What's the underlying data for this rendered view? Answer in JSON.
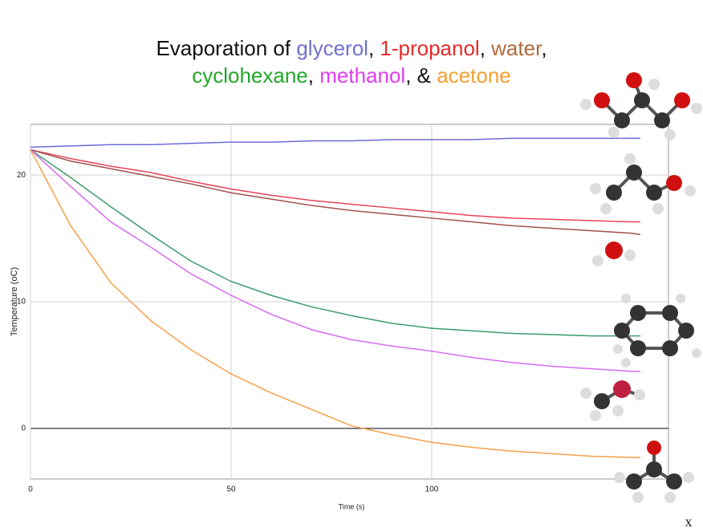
{
  "chart_data": {
    "type": "line",
    "title_lines": [
      [
        {
          "text": "Evaporation of ",
          "color": "#111111"
        },
        {
          "text": "glycerol",
          "color": "#7070d0"
        },
        {
          "text": ", ",
          "color": "#111111"
        },
        {
          "text": "1-propanol",
          "color": "#e62a2a"
        },
        {
          "text": ", ",
          "color": "#111111"
        },
        {
          "text": "water",
          "color": "#b06a3a"
        },
        {
          "text": ",",
          "color": "#111111"
        }
      ],
      [
        {
          "text": "cyclohexane",
          "color": "#22a82a"
        },
        {
          "text": ", ",
          "color": "#111111"
        },
        {
          "text": "methanol",
          "color": "#e03cf0"
        },
        {
          "text": ", & ",
          "color": "#111111"
        },
        {
          "text": "acetone",
          "color": "#f5a030"
        }
      ]
    ],
    "x_label": "Time (s)",
    "y_label": "Temperature (oC)",
    "x": [
      0,
      10,
      20,
      30,
      40,
      50,
      60,
      70,
      80,
      90,
      100,
      110,
      120,
      130,
      140,
      150,
      152
    ],
    "series": [
      {
        "name": "glycerol",
        "color": "#6b6bdc",
        "values": [
          22.2,
          22.3,
          22.4,
          22.4,
          22.5,
          22.6,
          22.6,
          22.7,
          22.7,
          22.8,
          22.8,
          22.8,
          22.9,
          22.9,
          22.9,
          22.9,
          22.9
        ]
      },
      {
        "name": "1-propanol",
        "color": "#e8455a",
        "values": [
          22.0,
          21.3,
          20.7,
          20.2,
          19.5,
          18.9,
          18.4,
          18.0,
          17.7,
          17.4,
          17.1,
          16.8,
          16.6,
          16.5,
          16.4,
          16.3,
          16.3
        ]
      },
      {
        "name": "water",
        "color": "#a0524c",
        "values": [
          22.0,
          21.1,
          20.5,
          19.9,
          19.3,
          18.6,
          18.1,
          17.6,
          17.2,
          16.9,
          16.6,
          16.3,
          16.0,
          15.8,
          15.6,
          15.4,
          15.3
        ]
      },
      {
        "name": "cyclohexane",
        "color": "#3c9c6c",
        "values": [
          22.0,
          19.8,
          17.5,
          15.3,
          13.2,
          11.6,
          10.5,
          9.6,
          8.9,
          8.3,
          7.9,
          7.7,
          7.5,
          7.4,
          7.3,
          7.3,
          7.3
        ]
      },
      {
        "name": "methanol",
        "color": "#d46bf0",
        "values": [
          22.0,
          19.1,
          16.3,
          14.3,
          12.2,
          10.5,
          9.0,
          7.8,
          7.0,
          6.5,
          6.1,
          5.6,
          5.2,
          4.9,
          4.7,
          4.5,
          4.5
        ]
      },
      {
        "name": "acetone",
        "color": "#f5a04a",
        "values": [
          22.0,
          16.0,
          11.5,
          8.5,
          6.2,
          4.3,
          2.8,
          1.5,
          0.2,
          -0.5,
          -1.1,
          -1.5,
          -1.8,
          -2.0,
          -2.2,
          -2.3,
          -2.3
        ]
      }
    ],
    "xlim": [
      0,
      159
    ],
    "ylim": [
      -4,
      24
    ],
    "xticks": [
      0,
      50,
      100
    ],
    "yticks": [
      0,
      10,
      20
    ],
    "grid": true,
    "corner_mark": "x"
  }
}
